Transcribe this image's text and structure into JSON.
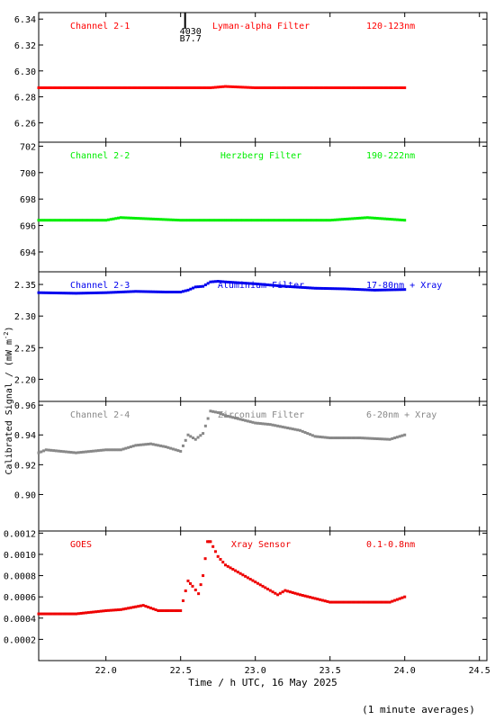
{
  "chart_data": {
    "type": "scatter",
    "xlabel": "Time / h UTC, 16 May 2025",
    "ylabel": "Calibrated Signal / (mW m",
    "ylabel_sup": "-2",
    "ylabel_tail": ")",
    "footnote": "(1 minute averages)",
    "xlim": [
      21.55,
      24.55
    ],
    "xticks": [
      "22.0",
      "22.5",
      "23.0",
      "23.5",
      "24.0",
      "24.5"
    ],
    "xtick_values": [
      22.0,
      22.5,
      23.0,
      23.5,
      24.0,
      24.5
    ],
    "marker_annotation": {
      "x": 22.53,
      "line1": "4030",
      "line2": "B7.7"
    },
    "panels": [
      {
        "channel": "Channel 2-1",
        "filter": "Lyman-alpha Filter",
        "band": "120-123nm",
        "color": "#ff0000",
        "ylim": [
          6.245,
          6.345
        ],
        "yticks": [
          "6.26",
          "6.28",
          "6.30",
          "6.32",
          "6.34"
        ],
        "ytick_values": [
          6.26,
          6.28,
          6.3,
          6.32,
          6.34
        ],
        "x": [
          21.55,
          22.0,
          22.5,
          22.7,
          22.8,
          23.0,
          23.5,
          24.0
        ],
        "y": [
          6.287,
          6.287,
          6.287,
          6.287,
          6.288,
          6.287,
          6.287,
          6.287
        ]
      },
      {
        "channel": "Channel 2-2",
        "filter": "Herzberg Filter",
        "band": "190-222nm",
        "color": "#00ee00",
        "ylim": [
          692.5,
          702.3
        ],
        "yticks": [
          "694",
          "696",
          "698",
          "700",
          "702"
        ],
        "ytick_values": [
          694,
          696,
          698,
          700,
          702
        ],
        "x": [
          21.55,
          22.0,
          22.1,
          22.5,
          23.0,
          23.5,
          23.75,
          24.0
        ],
        "y": [
          696.4,
          696.4,
          696.6,
          696.4,
          696.4,
          696.4,
          696.6,
          696.4
        ]
      },
      {
        "channel": "Channel 2-3",
        "filter": "Aluminium Filter",
        "band": "17-80nm + Xray",
        "color": "#0000ee",
        "ylim": [
          2.165,
          2.37
        ],
        "yticks": [
          "2.20",
          "2.25",
          "2.30",
          "2.35"
        ],
        "ytick_values": [
          2.2,
          2.25,
          2.3,
          2.35
        ],
        "x": [
          21.55,
          21.8,
          22.0,
          22.2,
          22.4,
          22.5,
          22.55,
          22.6,
          22.65,
          22.7,
          22.75,
          22.8,
          23.0,
          23.2,
          23.4,
          23.6,
          23.8,
          24.0
        ],
        "y": [
          2.337,
          2.336,
          2.337,
          2.339,
          2.338,
          2.338,
          2.341,
          2.346,
          2.347,
          2.354,
          2.355,
          2.354,
          2.351,
          2.347,
          2.344,
          2.343,
          2.341,
          2.342
        ]
      },
      {
        "channel": "Channel 2-4",
        "filter": "Zirconium Filter",
        "band": "6-20nm + Xray",
        "color": "#888888",
        "ylim": [
          0.8755,
          0.9625
        ],
        "yticks": [
          "0.90",
          "0.92",
          "0.94",
          "0.96"
        ],
        "ytick_values": [
          0.9,
          0.92,
          0.94,
          0.96
        ],
        "x": [
          21.55,
          21.6,
          21.8,
          22.0,
          22.1,
          22.2,
          22.3,
          22.4,
          22.5,
          22.55,
          22.6,
          22.65,
          22.7,
          22.75,
          22.8,
          23.0,
          23.1,
          23.2,
          23.3,
          23.4,
          23.5,
          23.7,
          23.9,
          24.0
        ],
        "y": [
          0.928,
          0.93,
          0.928,
          0.93,
          0.93,
          0.933,
          0.934,
          0.932,
          0.929,
          0.94,
          0.937,
          0.941,
          0.956,
          0.955,
          0.953,
          0.948,
          0.947,
          0.945,
          0.943,
          0.939,
          0.938,
          0.938,
          0.937,
          0.94
        ]
      },
      {
        "channel": "GOES",
        "filter": "Xray Sensor",
        "band": "0.1-0.8nm",
        "color": "#ee0000",
        "ylim": [
          0.0,
          0.00122
        ],
        "yticks": [
          "0.0002",
          "0.0004",
          "0.0006",
          "0.0008",
          "0.0010",
          "0.0012"
        ],
        "ytick_values": [
          0.0002,
          0.0004,
          0.0006,
          0.0008,
          0.001,
          0.0012
        ],
        "x": [
          21.55,
          21.8,
          22.0,
          22.1,
          22.25,
          22.35,
          22.5,
          22.55,
          22.58,
          22.62,
          22.65,
          22.68,
          22.7,
          22.75,
          22.8,
          23.0,
          23.1,
          23.15,
          23.2,
          23.3,
          23.5,
          23.7,
          23.9,
          24.0
        ],
        "y": [
          0.00044,
          0.00044,
          0.00047,
          0.00048,
          0.00052,
          0.00047,
          0.00047,
          0.00075,
          0.0007,
          0.00063,
          0.0008,
          0.00112,
          0.00112,
          0.00098,
          0.0009,
          0.00074,
          0.00066,
          0.00062,
          0.00066,
          0.00062,
          0.00055,
          0.00055,
          0.00055,
          0.0006
        ]
      }
    ]
  }
}
